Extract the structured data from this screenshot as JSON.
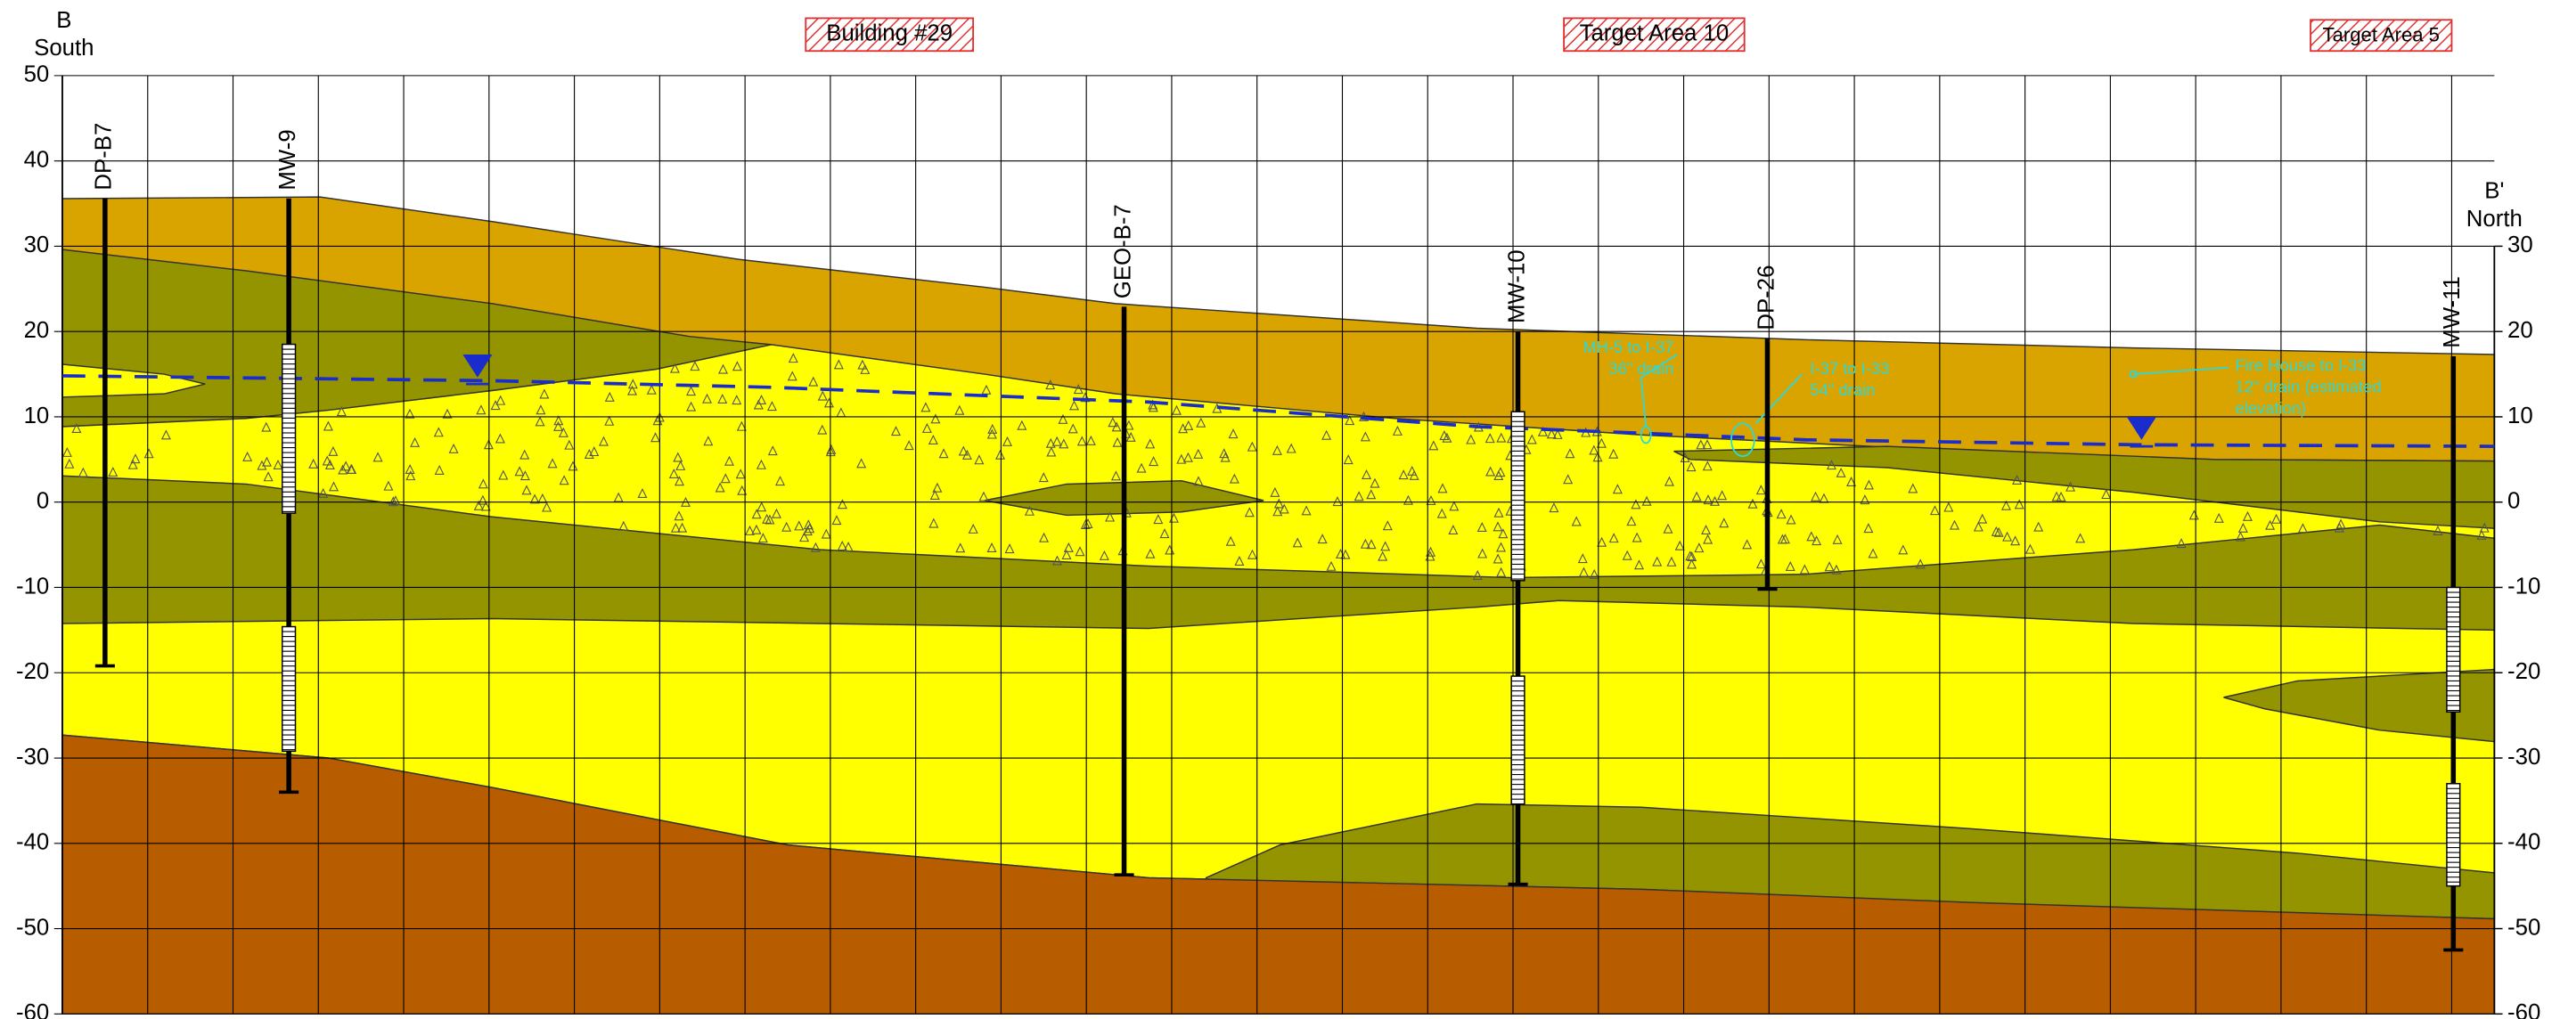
{
  "header": {
    "left_label": "B",
    "left_direction": "South",
    "right_label": "B'",
    "right_direction": "North"
  },
  "locations": [
    "Building #29",
    "Target Area 10",
    "Target Area 5"
  ],
  "elevation_axis": {
    "ylim": [
      -60,
      50
    ],
    "yticks": [
      -60,
      -50,
      -40,
      -30,
      -20,
      -10,
      0,
      10,
      20,
      30,
      40,
      50
    ],
    "y2ticks": [
      -60,
      -50,
      -40,
      -30,
      -20,
      -10,
      0,
      10,
      20,
      30
    ]
  },
  "wells": [
    {
      "name": "DP-B7",
      "top": 35.6,
      "bottom": -19.2,
      "screens": []
    },
    {
      "name": "MW-9",
      "top": 35.6,
      "bottom": -34,
      "screens": [
        [
          18.5,
          -1.3
        ],
        [
          -14.6,
          -29.2
        ]
      ]
    },
    {
      "name": "GEO-B-7",
      "top": 22.9,
      "bottom": -43.7,
      "screens": []
    },
    {
      "name": "MW-10",
      "top": 20,
      "bottom": -44.8,
      "screens": [
        [
          10.6,
          -9.2
        ],
        [
          -20.4,
          -35.4
        ]
      ]
    },
    {
      "name": "DP-26",
      "top": 19.2,
      "bottom": -10.2,
      "screens": []
    },
    {
      "name": "MW-11",
      "top": 17.1,
      "bottom": -52.5,
      "screens": [
        [
          -10,
          -24.6
        ],
        [
          -33,
          -45
        ]
      ]
    }
  ],
  "annotations": [
    {
      "lines": [
        "MH-5 to I-37",
        "36\" drain"
      ]
    },
    {
      "lines": [
        "I-37 to I-33",
        "54\" drain"
      ]
    },
    {
      "lines": [
        "Fire House to I-33",
        "12\" drain (estimated",
        "elevation)"
      ]
    }
  ]
}
